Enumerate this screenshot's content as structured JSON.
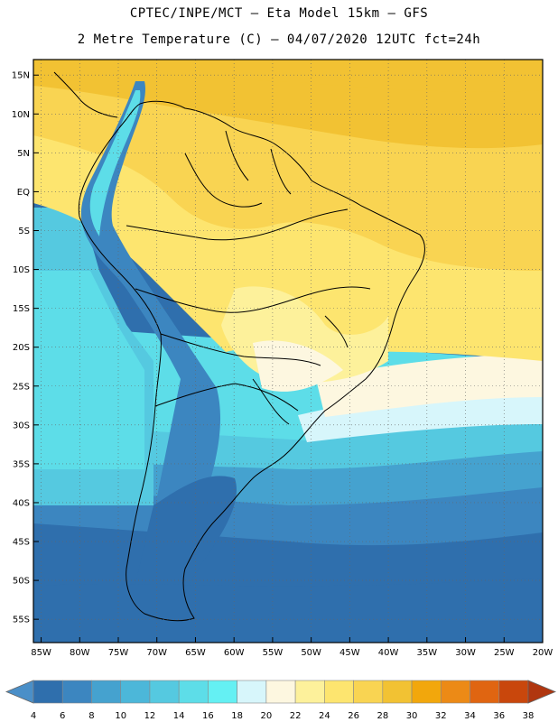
{
  "header": {
    "title_line1": "CPTEC/INPE/MCT –  Eta Model 15km – GFS",
    "title_line2": "2 Metre Temperature (C) – 04/07/2020 12UTC fct=24h"
  },
  "map": {
    "lat_labels": [
      "15N",
      "10N",
      "5N",
      "EQ",
      "5S",
      "10S",
      "15S",
      "20S",
      "25S",
      "30S",
      "35S",
      "40S",
      "45S",
      "50S",
      "55S"
    ],
    "lon_labels": [
      "85W",
      "80W",
      "75W",
      "70W",
      "65W",
      "60W",
      "55W",
      "50W",
      "45W",
      "40W",
      "35W",
      "30W",
      "25W",
      "20W"
    ]
  },
  "colorbar": {
    "labels": [
      "4",
      "6",
      "8",
      "10",
      "12",
      "14",
      "16",
      "18",
      "20",
      "22",
      "24",
      "26",
      "28",
      "30",
      "32",
      "34",
      "36",
      "38"
    ],
    "colors": [
      "#4a8fc8",
      "#2f6fad",
      "#3c86c0",
      "#45a2cf",
      "#4cb7d9",
      "#55c9e0",
      "#5ddde8",
      "#64f0f3",
      "#d7f6fb",
      "#fdf7e0",
      "#fdf19b",
      "#fde56f",
      "#f9d452",
      "#f2c233",
      "#f2a70c",
      "#ec8a16",
      "#e06511",
      "#c9470c",
      "#b0360f"
    ]
  }
}
